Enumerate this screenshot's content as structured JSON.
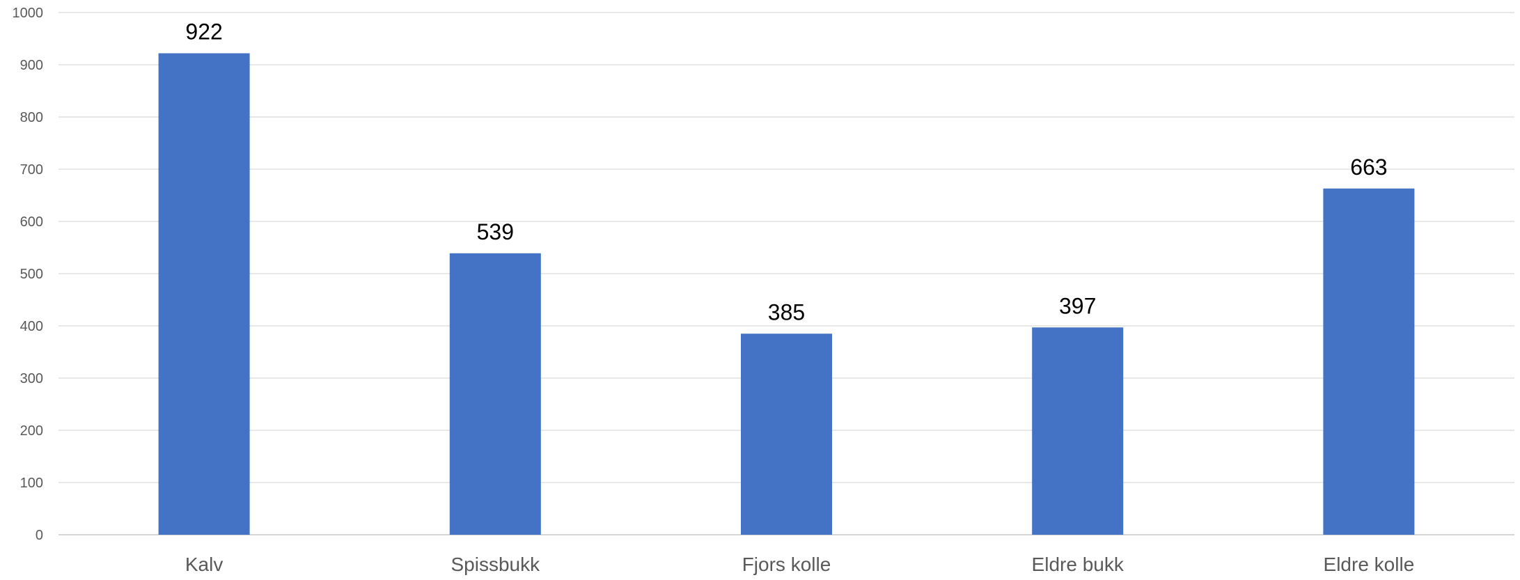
{
  "chart_data": {
    "type": "bar",
    "title": "",
    "xlabel": "",
    "ylabel": "",
    "categories": [
      "Kalv",
      "Spissbukk",
      "Fjors kolle",
      "Eldre bukk",
      "Eldre kolle"
    ],
    "values": [
      922,
      539,
      385,
      397,
      663
    ],
    "data_labels": [
      "922",
      "539",
      "385",
      "397",
      "663"
    ],
    "ylim": [
      0,
      1000
    ],
    "yticks": [
      0,
      100,
      200,
      300,
      400,
      500,
      600,
      700,
      800,
      900,
      1000
    ],
    "ytick_labels": [
      "0",
      "100",
      "200",
      "300",
      "400",
      "500",
      "600",
      "700",
      "800",
      "900",
      "1000"
    ],
    "grid": true,
    "legend": "none",
    "bar_color": "#4472C4"
  }
}
